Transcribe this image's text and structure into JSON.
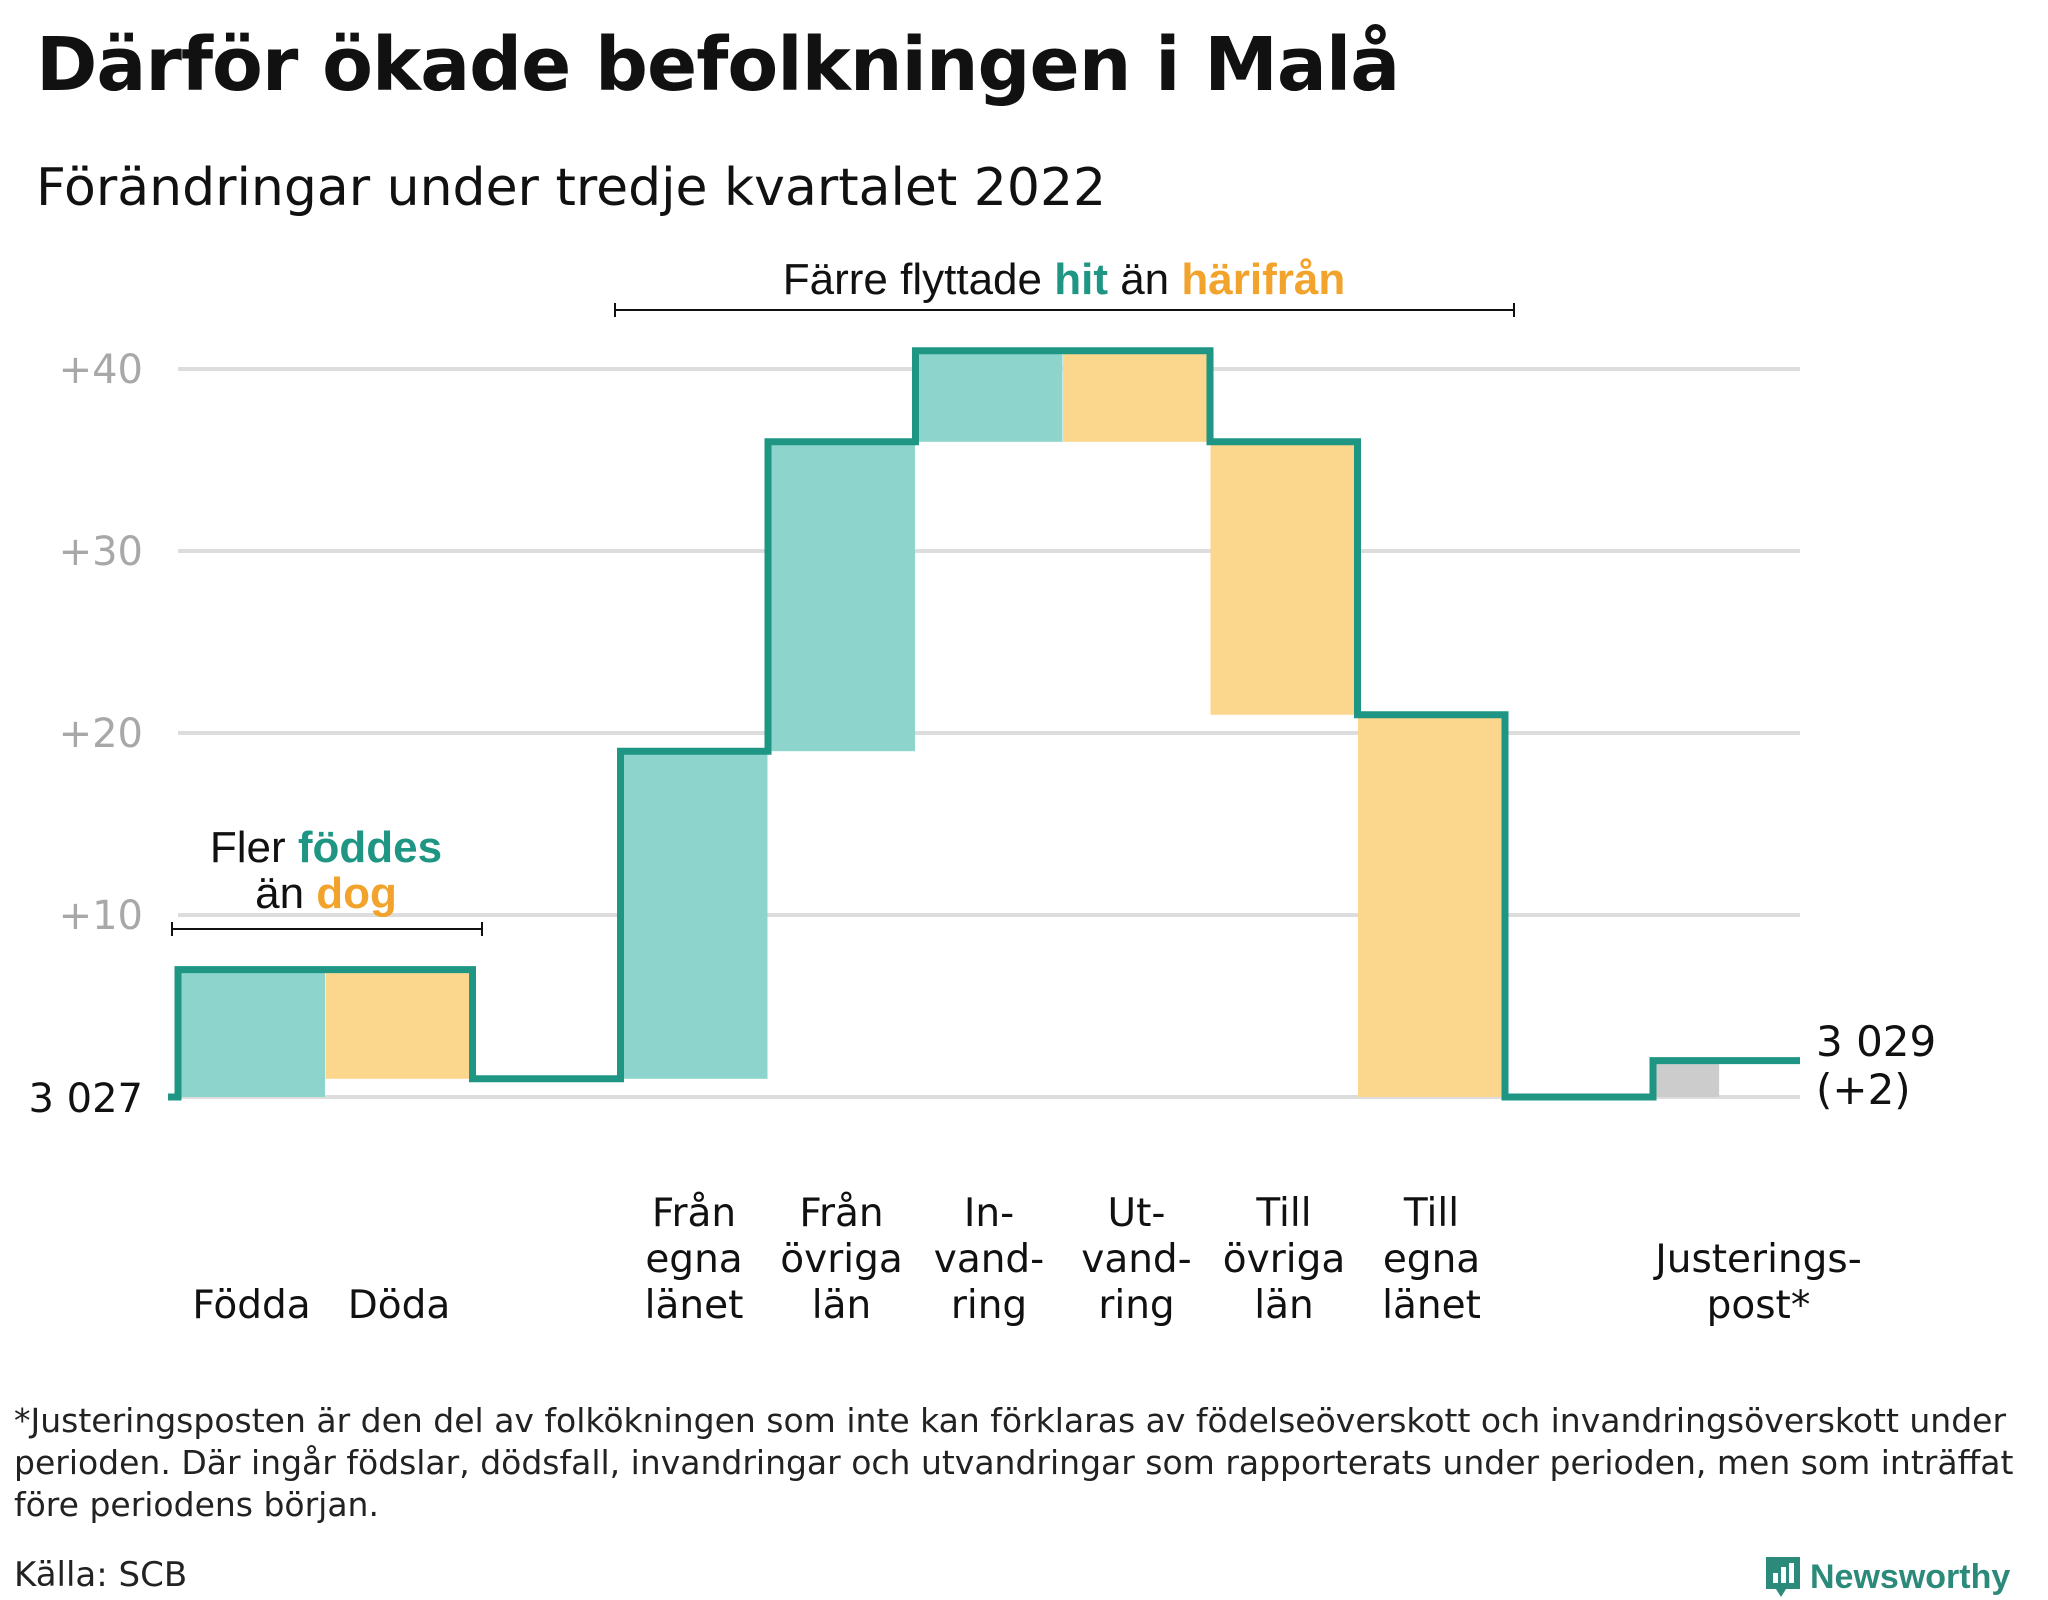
{
  "header": {
    "title": "Därför ökade befolkningen i Malå",
    "subtitle": "Förändringar under tredje kvartalet 2022"
  },
  "annotations": {
    "births": {
      "line1_prefix": "Fler ",
      "line1_highlight": "föddes",
      "line2_prefix": "än ",
      "line2_highlight": "dog"
    },
    "moves": {
      "prefix": "Färre flyttade ",
      "highlight1": "hit",
      "middle": " än ",
      "highlight2": "härifrån"
    }
  },
  "start_label": "3 027",
  "end_label": {
    "line1": "3 029",
    "line2": "(+2)"
  },
  "footnote": "*Justeringsposten är den del av folkökningen som inte kan förklaras av födelseöverskott och invandringsöverskott under perioden. Där ingår födslar, dödsfall, invandringar och utvandringar som rapporterats under perioden, men som inträffat före periodens början.",
  "source": "Källa: SCB",
  "brand": "Newsworthy",
  "colors": {
    "increase": "#8dd5cc",
    "decrease": "#fbd68d",
    "adjustment": "#cccccc",
    "line": "#1f9584",
    "teal_text": "#1f9584",
    "orange_text": "#f2a32c",
    "grid": "#dddddd",
    "tick_text": "#a8a8a8"
  },
  "chart_data": {
    "type": "bar",
    "subtype": "waterfall",
    "baseline": 3027,
    "ylim": [
      0,
      41
    ],
    "yticks": [
      {
        "value": 10,
        "label": "+10"
      },
      {
        "value": 20,
        "label": "+20"
      },
      {
        "value": 30,
        "label": "+30"
      },
      {
        "value": 40,
        "label": "+40"
      }
    ],
    "grid": true,
    "steps": [
      {
        "label": "Födda",
        "delta": 7,
        "kind": "increase"
      },
      {
        "label": "Döda",
        "delta": -6,
        "kind": "decrease"
      },
      {
        "label": "",
        "delta": 0,
        "kind": "gap"
      },
      {
        "label": "Från egna länet",
        "delta": 18,
        "kind": "increase"
      },
      {
        "label": "Från övriga län",
        "delta": 17,
        "kind": "increase"
      },
      {
        "label": "In- vand- ring",
        "delta": 5,
        "kind": "increase"
      },
      {
        "label": "Ut- vand- ring",
        "delta": -5,
        "kind": "decrease"
      },
      {
        "label": "Till övriga län",
        "delta": -15,
        "kind": "decrease"
      },
      {
        "label": "Till egna länet",
        "delta": -21,
        "kind": "decrease"
      },
      {
        "label": "",
        "delta": 0,
        "kind": "gap"
      },
      {
        "label": "Justerings- post*",
        "delta": 2,
        "kind": "adjustment"
      }
    ],
    "category_label_lines": [
      [
        "Födda"
      ],
      [
        "Döda"
      ],
      [],
      [
        "Från",
        "egna",
        "länet"
      ],
      [
        "Från",
        "övriga",
        "län"
      ],
      [
        "In-",
        "vand-",
        "ring"
      ],
      [
        "Ut-",
        "vand-",
        "ring"
      ],
      [
        "Till",
        "övriga",
        "län"
      ],
      [
        "Till",
        "egna",
        "länet"
      ],
      [],
      [
        "Justerings-",
        "post*"
      ]
    ],
    "end_value": 3029,
    "net_change": 2
  }
}
